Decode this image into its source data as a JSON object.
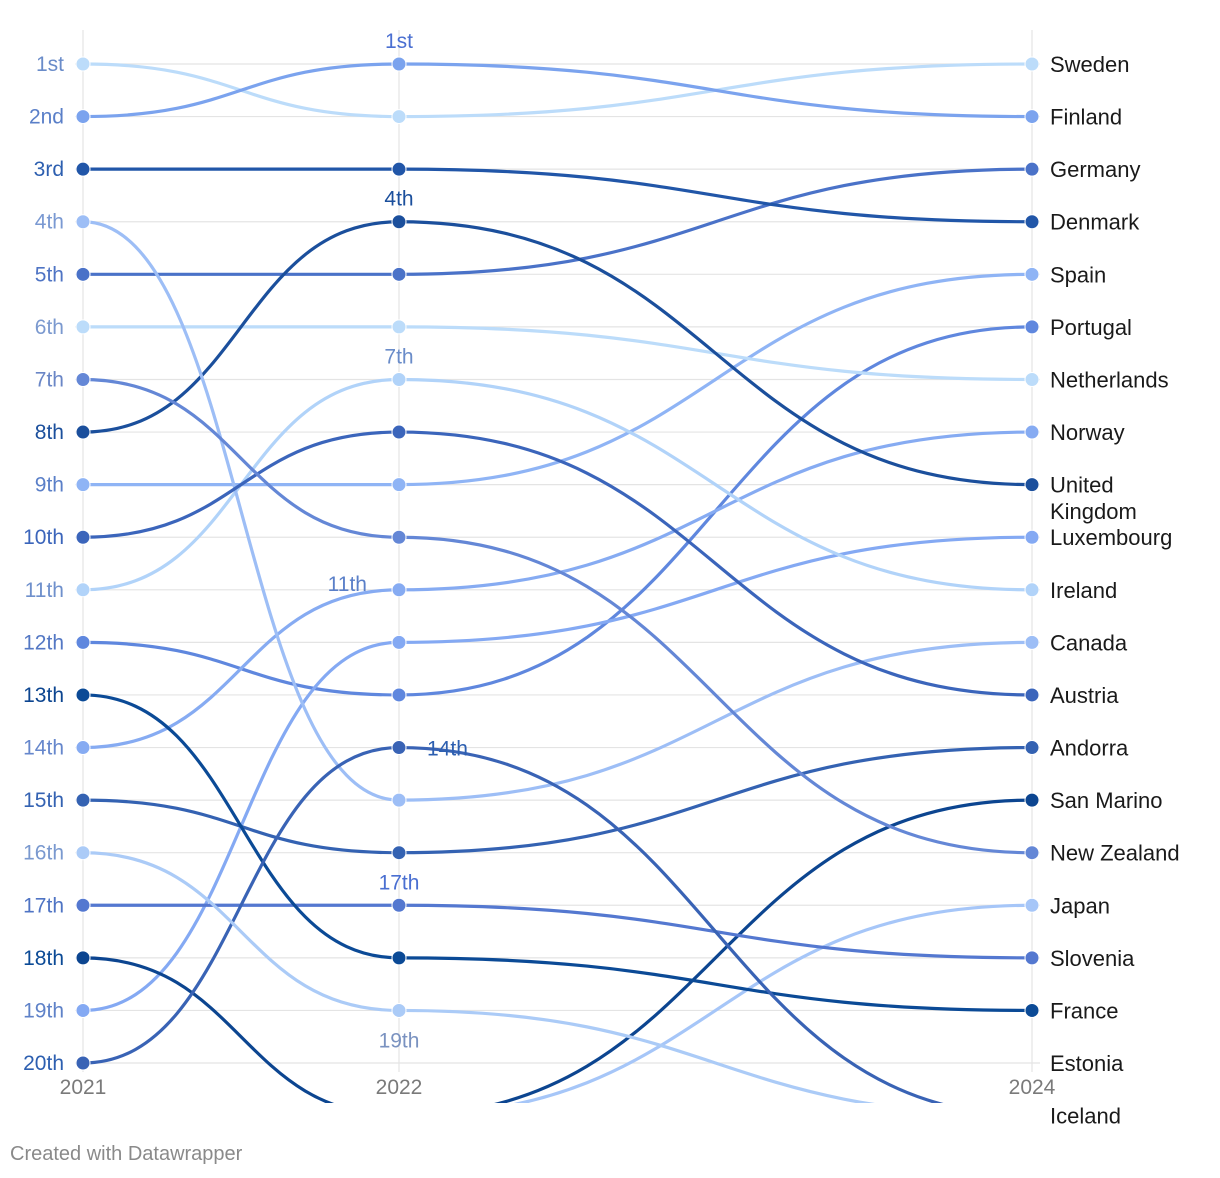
{
  "chart_data": {
    "type": "line",
    "title": "",
    "xlabel": "",
    "ylabel": "",
    "x": [
      "2021",
      "2022",
      "2024"
    ],
    "rank_labels": [
      "1st",
      "2nd",
      "3rd",
      "4th",
      "5th",
      "6th",
      "7th",
      "8th",
      "9th",
      "10th",
      "11th",
      "12th",
      "13th",
      "14th",
      "15th",
      "16th",
      "17th",
      "18th",
      "19th",
      "20th"
    ],
    "ylim": [
      1,
      20
    ],
    "grid": true,
    "mid_labels": [
      {
        "text": "1st",
        "rank": 1,
        "color": "#4a6fd1"
      },
      {
        "text": "4th",
        "rank": 4,
        "color": "#1b4f9c"
      },
      {
        "text": "7th",
        "rank": 7,
        "color": "#6a8cc9"
      },
      {
        "text": "11th",
        "rank": 11,
        "color": "#5a7fc8"
      },
      {
        "text": "14th",
        "rank": 14,
        "color": "#2d5fb0"
      },
      {
        "text": "17th",
        "rank": 17,
        "color": "#4a6fd1"
      },
      {
        "text": "19th",
        "rank": 19,
        "color": "#7a92c0"
      }
    ],
    "series": [
      {
        "name": "Sweden",
        "values": [
          1,
          2,
          1
        ],
        "color": "#bcdcfa"
      },
      {
        "name": "Finland",
        "values": [
          2,
          1,
          2
        ],
        "color": "#7ba3ee"
      },
      {
        "name": "Germany",
        "values": [
          5,
          5,
          3
        ],
        "color": "#4a72c8"
      },
      {
        "name": "Denmark",
        "values": [
          3,
          3,
          4
        ],
        "color": "#2156a8"
      },
      {
        "name": "Spain",
        "values": [
          9,
          9,
          5
        ],
        "color": "#8fb4f5"
      },
      {
        "name": "Portugal",
        "values": [
          12,
          13,
          6
        ],
        "color": "#5f87de"
      },
      {
        "name": "Netherlands",
        "values": [
          6,
          6,
          7
        ],
        "color": "#bcdcfa"
      },
      {
        "name": "Norway",
        "values": [
          14,
          11,
          8
        ],
        "color": "#86abf2"
      },
      {
        "name": "United Kingdom",
        "values": [
          8,
          4,
          9
        ],
        "color": "#1b4f9c"
      },
      {
        "name": "Luxembourg",
        "values": [
          19,
          12,
          10
        ],
        "color": "#84a9f3"
      },
      {
        "name": "Ireland",
        "values": [
          11,
          7,
          11
        ],
        "color": "#b1d3f9"
      },
      {
        "name": "Canada",
        "values": [
          4,
          15,
          12
        ],
        "color": "#9dbef6"
      },
      {
        "name": "Austria",
        "values": [
          10,
          8,
          13
        ],
        "color": "#3b65bb"
      },
      {
        "name": "Andorra",
        "values": [
          15,
          16,
          14
        ],
        "color": "#3462b2"
      },
      {
        "name": "San Marino",
        "values": [
          18,
          21,
          15
        ],
        "color": "#0c4590"
      },
      {
        "name": "New Zealand",
        "values": [
          7,
          10,
          16
        ],
        "color": "#6487d6"
      },
      {
        "name": "Japan",
        "values": [
          null,
          21,
          17
        ],
        "color": "#a6c6f8"
      },
      {
        "name": "Slovenia",
        "values": [
          17,
          17,
          18
        ],
        "color": "#5478d0"
      },
      {
        "name": "France",
        "values": [
          13,
          18,
          19
        ],
        "color": "#0b4a96"
      },
      {
        "name": "Estonia",
        "values": [
          20,
          14,
          21
        ],
        "color": "#3963b5"
      },
      {
        "name": "Iceland",
        "values": [
          16,
          19,
          21
        ],
        "color": "#abcbf7"
      }
    ],
    "right_labels": [
      {
        "text": "Sweden",
        "rank": 1
      },
      {
        "text": "Finland",
        "rank": 2
      },
      {
        "text": "Germany",
        "rank": 3
      },
      {
        "text": "Denmark",
        "rank": 4
      },
      {
        "text": "Spain",
        "rank": 5
      },
      {
        "text": "Portugal",
        "rank": 6
      },
      {
        "text": "Netherlands",
        "rank": 7
      },
      {
        "text": "Norway",
        "rank": 8
      },
      {
        "text": "United",
        "rank": 9
      },
      {
        "text": "Kingdom",
        "rank": 9.5
      },
      {
        "text": "Luxembourg",
        "rank": 10
      },
      {
        "text": "Ireland",
        "rank": 11
      },
      {
        "text": "Canada",
        "rank": 12
      },
      {
        "text": "Austria",
        "rank": 13
      },
      {
        "text": "Andorra",
        "rank": 14
      },
      {
        "text": "San Marino",
        "rank": 15
      },
      {
        "text": "New Zealand",
        "rank": 16
      },
      {
        "text": "Japan",
        "rank": 17
      },
      {
        "text": "Slovenia",
        "rank": 18
      },
      {
        "text": "France",
        "rank": 19
      },
      {
        "text": "Estonia",
        "rank": 20
      },
      {
        "text": "Iceland",
        "rank": 21
      }
    ]
  },
  "footer": "Created with Datawrapper"
}
